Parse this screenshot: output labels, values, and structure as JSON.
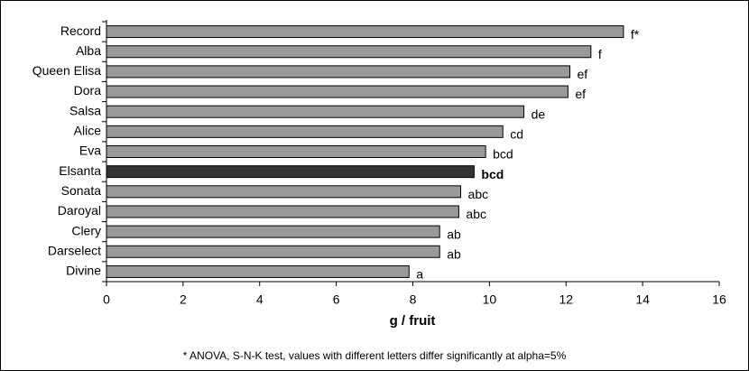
{
  "chart_data": {
    "type": "hbar",
    "categories": [
      "Record",
      "Alba",
      "Queen Elisa",
      "Dora",
      "Salsa",
      "Alice",
      "Eva",
      "Elsanta",
      "Sonata",
      "Daroyal",
      "Clery",
      "Darselect",
      "Divine"
    ],
    "values": [
      13.5,
      12.65,
      12.1,
      12.05,
      10.9,
      10.35,
      9.9,
      9.6,
      9.25,
      9.2,
      8.7,
      8.7,
      7.9
    ],
    "annotations": [
      "f*",
      "f",
      "ef",
      "ef",
      "de",
      "cd",
      "bcd",
      "bcd",
      "abc",
      "abc",
      "ab",
      "ab",
      "a"
    ],
    "annotation_bold": [
      false,
      false,
      false,
      false,
      false,
      false,
      false,
      true,
      false,
      false,
      false,
      false,
      false
    ],
    "colors": [
      "#999999",
      "#999999",
      "#999999",
      "#999999",
      "#999999",
      "#999999",
      "#999999",
      "#333333",
      "#999999",
      "#999999",
      "#999999",
      "#999999",
      "#999999"
    ],
    "xlabel": "g / fruit",
    "xlim": [
      0,
      16
    ],
    "xticks": [
      0,
      2,
      4,
      6,
      8,
      10,
      12,
      14,
      16
    ],
    "footnote": "* ANOVA, S-N-K test, values with different letters differ significantly at alpha=5%"
  }
}
